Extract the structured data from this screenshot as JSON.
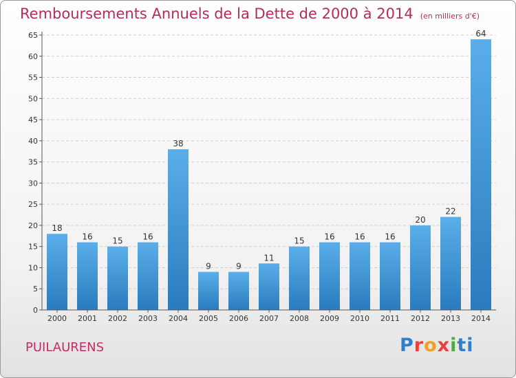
{
  "header": {
    "title": "Remboursements Annuels de la Dette de 2000 à 2014",
    "unit": "(en milliers d'€)"
  },
  "footer": {
    "place": "PUILAURENS",
    "logo_letters": [
      "P",
      "r",
      "o",
      "x",
      "i",
      "ti"
    ]
  },
  "colors": {
    "title": "#b22c5c",
    "bar_top": "#5aaee9",
    "bar_bottom": "#2a7bbd"
  },
  "chart_data": {
    "type": "bar",
    "title": "Remboursements Annuels de la Dette de 2000 à 2014",
    "xlabel": "",
    "ylabel": "",
    "categories": [
      "2000",
      "2001",
      "2002",
      "2003",
      "2004",
      "2005",
      "2006",
      "2007",
      "2008",
      "2009",
      "2010",
      "2011",
      "2012",
      "2013",
      "2014"
    ],
    "values": [
      18,
      16,
      15,
      16,
      38,
      9,
      9,
      11,
      15,
      16,
      16,
      16,
      20,
      22,
      64
    ],
    "ylim": [
      0,
      65
    ],
    "yticks": [
      0,
      5,
      10,
      15,
      20,
      25,
      30,
      35,
      40,
      45,
      50,
      55,
      60,
      65
    ],
    "grid": true
  }
}
